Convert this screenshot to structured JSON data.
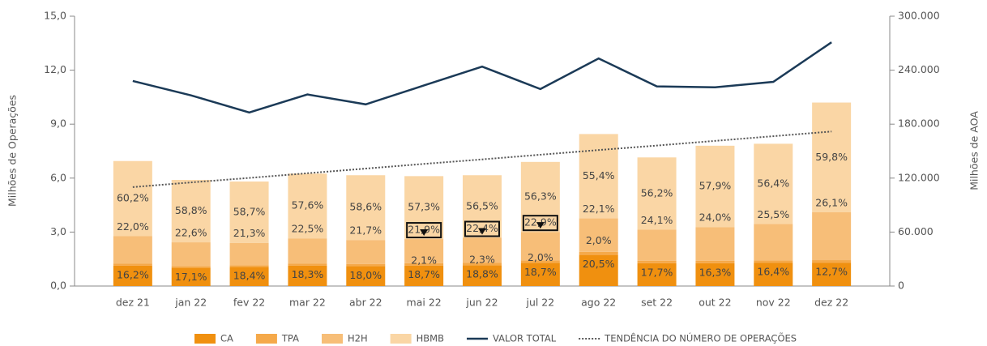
{
  "chart_data": {
    "type": "bar",
    "y_label": "Milhões de Operações",
    "y2_label": "Milhões de AOA",
    "categories": [
      "dez 21",
      "jan 22",
      "fev 22",
      "mar 22",
      "abr 22",
      "mai 22",
      "jun 22",
      "jul 22",
      "ago 22",
      "set 22",
      "out 22",
      "nov 22",
      "dez 22"
    ],
    "ylim": [
      0,
      15
    ],
    "yticks": [
      {
        "value": 0,
        "label": "0,0"
      },
      {
        "value": 3,
        "label": "3,0"
      },
      {
        "value": 6,
        "label": "6,0"
      },
      {
        "value": 9,
        "label": "9,0"
      },
      {
        "value": 12,
        "label": "12,0"
      },
      {
        "value": 15,
        "label": "15,0"
      }
    ],
    "y2lim": [
      0,
      300000
    ],
    "y2ticks": [
      0,
      {
        "value": 60000,
        "label": "60.000"
      },
      {
        "value": 120000,
        "label": "120.000"
      },
      {
        "value": 180000,
        "label": "180.000"
      },
      {
        "value": 240000,
        "label": "240.000"
      },
      {
        "value": 300000,
        "label": "300.000"
      }
    ],
    "highlight": [
      5,
      6,
      7
    ],
    "series": [
      {
        "name": "CA",
        "color": "#f0900f",
        "values": [
          1.13,
          1.01,
          1.07,
          1.14,
          1.11,
          1.14,
          1.16,
          1.29,
          1.73,
          1.27,
          1.27,
          1.3,
          1.3
        ],
        "share_labels": [
          "16,2%",
          "17,1%",
          "18,4%",
          "18,3%",
          "18,0%",
          "18,7%",
          "18,8%",
          "18,7%",
          "20,5%",
          "17,7%",
          "16,3%",
          "16,4%",
          "12,7%"
        ]
      },
      {
        "name": "TPA",
        "color": "#f5a94a",
        "values": [
          0.11,
          0.09,
          0.09,
          0.1,
          0.11,
          0.13,
          0.14,
          0.14,
          0.17,
          0.14,
          0.14,
          0.13,
          0.14
        ],
        "share_labels": [
          null,
          null,
          null,
          null,
          null,
          "2,1%",
          "2,3%",
          "2,0%",
          "2,0%",
          null,
          null,
          null,
          null
        ]
      },
      {
        "name": "H2H",
        "color": "#f7be78",
        "values": [
          1.53,
          1.33,
          1.24,
          1.41,
          1.34,
          1.34,
          1.38,
          1.58,
          1.87,
          1.72,
          1.87,
          2.02,
          2.66
        ],
        "share_labels": [
          "22,0%",
          "22,6%",
          "21,3%",
          "22,5%",
          "21,7%",
          "21,9%",
          "22,4%",
          "22,9%",
          "22,1%",
          "24,1%",
          "24,0%",
          "25,5%",
          "26,1%"
        ]
      },
      {
        "name": "HBMB",
        "color": "#fad6a5",
        "values": [
          4.18,
          3.47,
          3.41,
          3.6,
          3.6,
          3.5,
          3.48,
          3.89,
          4.68,
          4.02,
          4.52,
          4.46,
          6.1
        ],
        "share_labels": [
          "60,2%",
          "58,8%",
          "58,7%",
          "57,6%",
          "58,6%",
          "57,3%",
          "56,5%",
          "56,3%",
          "55,4%",
          "56,2%",
          "57,9%",
          "56,4%",
          "59,8%"
        ]
      },
      {
        "name": "VALOR TOTAL",
        "type": "line",
        "axis": "y2",
        "color": "#1b3a57",
        "values": [
          228000,
          212000,
          193000,
          213000,
          202000,
          223000,
          244000,
          219000,
          253000,
          222000,
          221000,
          227000,
          271000
        ]
      },
      {
        "name": "TENDÊNCIA DO NÚMERO DE OPERAÇÕES",
        "type": "trend",
        "color": "#555555",
        "values": [
          5.5,
          5.76,
          6.01,
          6.27,
          6.53,
          6.79,
          7.04,
          7.3,
          7.56,
          7.81,
          8.07,
          8.33,
          8.59
        ]
      }
    ]
  }
}
